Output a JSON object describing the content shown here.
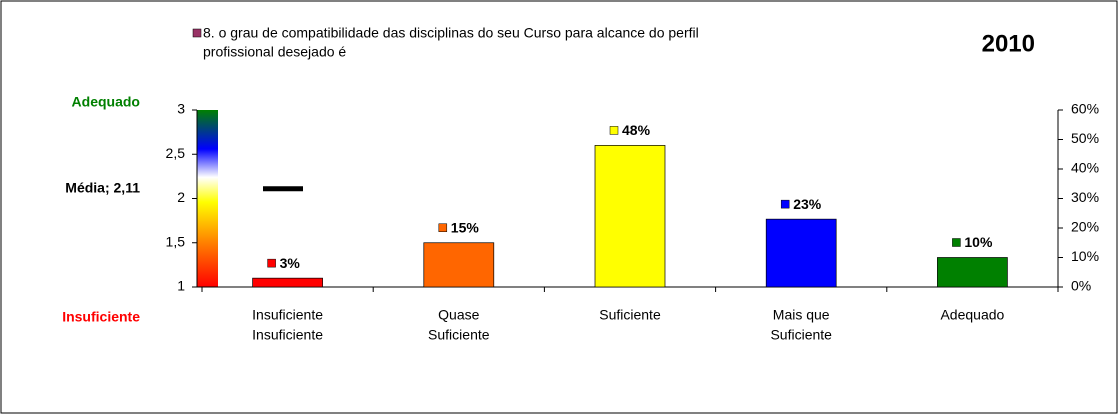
{
  "chart_data": {
    "type": "bar",
    "title": "2010",
    "legend": {
      "name": "8. o grau de compatibilidade das disciplinas do seu Curso para alcance do perfil",
      "name_line2": "profissional desejado é",
      "color": "#993366"
    },
    "scale_labels": {
      "top": "Adequado",
      "bottom": "Insuficiente"
    },
    "mean": {
      "label": "Média; 2,11",
      "value": 2.11
    },
    "categories": [
      [
        "Insuficiente",
        "Insuficiente"
      ],
      [
        "Quase",
        "Suficiente"
      ],
      [
        "Suficiente"
      ],
      [
        "Mais que",
        "Suficiente"
      ],
      [
        "Adequado"
      ]
    ],
    "series": [
      {
        "axis": "y2",
        "values": [
          3,
          15,
          48,
          23,
          10
        ],
        "value_labels": [
          "3%",
          "15%",
          "48%",
          "23%",
          "10%"
        ],
        "colors": [
          "#ff0000",
          "#ff6600",
          "#ffff00",
          "#0000ff",
          "#008000"
        ]
      }
    ],
    "ylim": [
      1,
      3
    ],
    "yticks": [
      1,
      {
        "value": 1.5,
        "label": "1,5"
      },
      2,
      {
        "value": 2.5,
        "label": "2,5"
      },
      3
    ],
    "y2lim": [
      0,
      60
    ],
    "y2ticks": [
      {
        "value": 0,
        "label": "0%"
      },
      {
        "value": 10,
        "label": "10%"
      },
      {
        "value": 20,
        "label": "20%"
      },
      {
        "value": 30,
        "label": "30%"
      },
      {
        "value": 40,
        "label": "40%"
      },
      {
        "value": 50,
        "label": "50%"
      },
      {
        "value": 60,
        "label": "60%"
      }
    ]
  }
}
